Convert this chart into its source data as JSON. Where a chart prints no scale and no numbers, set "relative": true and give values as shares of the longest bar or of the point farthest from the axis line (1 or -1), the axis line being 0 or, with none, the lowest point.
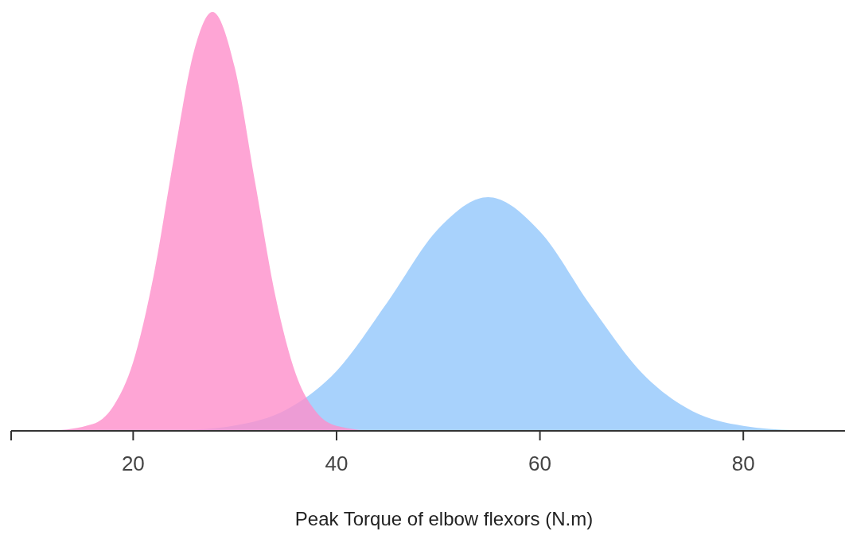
{
  "chart_data": {
    "type": "area",
    "relative": true,
    "xlabel": "Peak Torque of elbow flexors (N.m)",
    "xlim": [
      8,
      90
    ],
    "xticks": [
      20,
      40,
      60,
      80
    ],
    "tick_labels": "x",
    "grid": false,
    "series": [
      {
        "color": "#92c7fb",
        "x": [
          8,
          20,
          25,
          30,
          35,
          40,
          45,
          50,
          54.9,
          60,
          65,
          70,
          75,
          80,
          85,
          90
        ],
        "values": [
          0,
          0,
          0.002,
          0.013,
          0.05,
          0.143,
          0.307,
          0.482,
          0.558,
          0.476,
          0.299,
          0.139,
          0.047,
          0.012,
          0.002,
          0
        ]
      },
      {
        "color": "#fe8fca",
        "x": [
          8,
          12,
          16,
          18,
          20,
          22,
          24,
          26,
          27.8,
          30,
          32,
          34,
          36,
          38,
          40,
          44,
          48,
          90
        ],
        "values": [
          0,
          0.001,
          0.016,
          0.057,
          0.164,
          0.369,
          0.651,
          0.908,
          1,
          0.866,
          0.592,
          0.32,
          0.135,
          0.045,
          0.012,
          0,
          0,
          0
        ]
      }
    ]
  }
}
